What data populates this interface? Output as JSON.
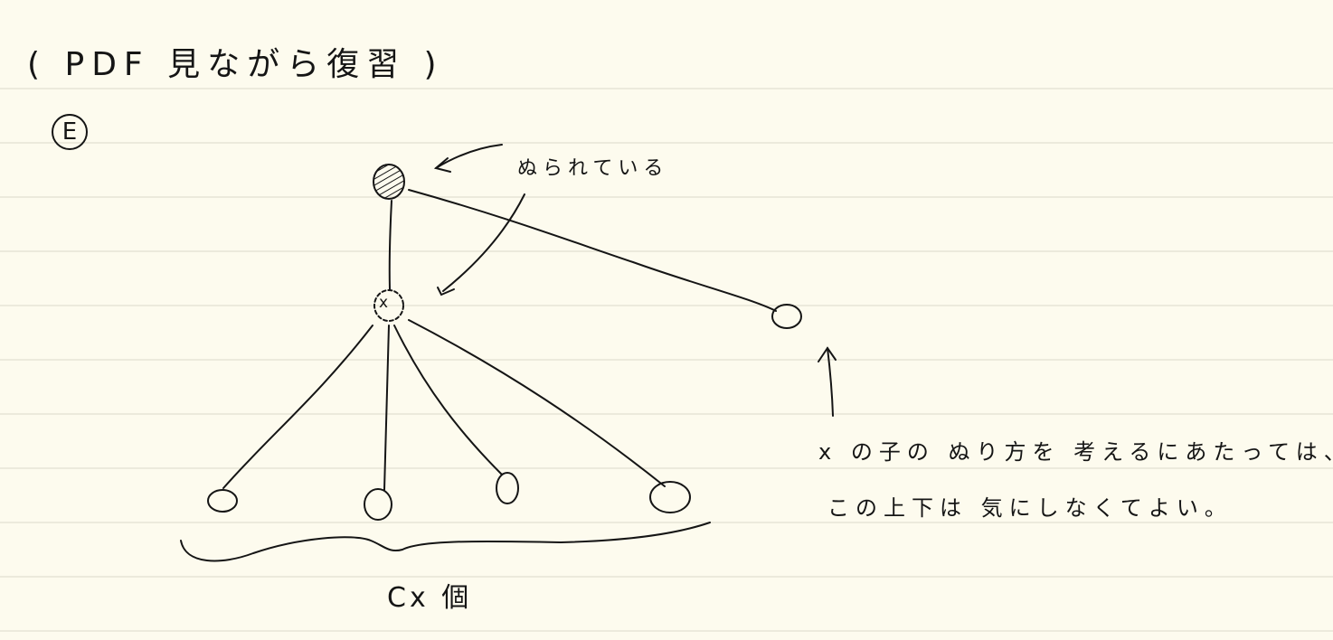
{
  "header": {
    "title": "( PDF 見ながら復習 )"
  },
  "section": {
    "label": "E"
  },
  "tree": {
    "painted_annotation": "ぬられている",
    "node_label": "x",
    "children_count_label": "Cx 個"
  },
  "notes": {
    "line1": "x の子の ぬり方を 考えるにあたっては、",
    "line2": "この上下は 気にしなくてよい。"
  }
}
